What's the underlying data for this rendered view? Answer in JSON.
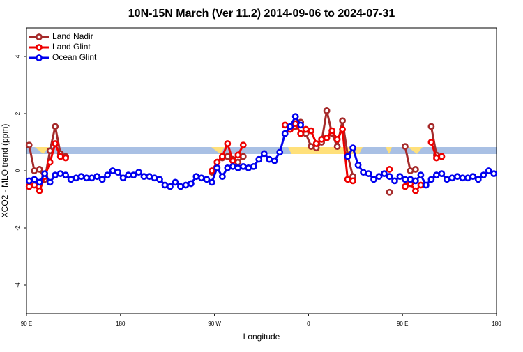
{
  "chart_data": {
    "type": "line",
    "title": "10N-15N March (Ver 11.2)   2014-09-06 to 2024-07-31",
    "x_label": "Longitude",
    "y_label": "XCO2 - MLO trend (ppm)",
    "xlim": [
      90,
      540
    ],
    "xticks": [
      {
        "value": 90,
        "label": "90 E"
      },
      180,
      {
        "value": 270,
        "label": "90 W"
      },
      {
        "value": 360,
        "label": "0"
      },
      {
        "value": 450,
        "label": "90 E"
      },
      {
        "value": 540,
        "label": "180"
      }
    ],
    "ylim": [
      -5,
      5
    ],
    "yticks": [
      -4,
      -2,
      0,
      2,
      4
    ],
    "legend": "top-left",
    "x": [
      92.5,
      97.5,
      102.5,
      107.5,
      112.5,
      117.5,
      122.5,
      127.5,
      132.5,
      137.5,
      142.5,
      147.5,
      152.5,
      157.5,
      162.5,
      167.5,
      172.5,
      177.5,
      182.5,
      187.5,
      192.5,
      197.5,
      202.5,
      207.5,
      212.5,
      217.5,
      222.5,
      227.5,
      232.5,
      237.5,
      242.5,
      247.5,
      252.5,
      257.5,
      262.5,
      267.5,
      272.5,
      277.5,
      282.5,
      287.5,
      292.5,
      297.5,
      302.5,
      307.5,
      312.5,
      317.5,
      322.5,
      327.5,
      332.5,
      337.5,
      342.5,
      347.5,
      352.5,
      357.5,
      362.5,
      367.5,
      372.5,
      377.5,
      382.5,
      387.5,
      392.5,
      397.5,
      402.5,
      407.5,
      412.5,
      417.5,
      422.5,
      427.5,
      432.5,
      437.5,
      442.5,
      447.5,
      452.5,
      457.5,
      462.5,
      467.5,
      472.5,
      477.5,
      482.5,
      487.5,
      492.5,
      497.5,
      502.5,
      507.5,
      512.5,
      517.5,
      522.5,
      527.5,
      532.5,
      537.5
    ],
    "series": [
      {
        "name": "Land Nadir",
        "color": "#a52a2a",
        "values": [
          0.9,
          0.0,
          0.05,
          -0.3,
          0.7,
          1.55,
          0.6,
          0.5,
          null,
          null,
          null,
          null,
          null,
          null,
          null,
          null,
          null,
          null,
          null,
          null,
          null,
          null,
          null,
          null,
          null,
          null,
          null,
          null,
          null,
          null,
          null,
          null,
          null,
          null,
          null,
          -0.05,
          0.3,
          0.45,
          0.5,
          0.4,
          0.3,
          0.5,
          null,
          null,
          null,
          null,
          null,
          null,
          null,
          null,
          null,
          1.55,
          1.7,
          1.3,
          0.85,
          0.8,
          1.0,
          2.1,
          1.3,
          0.85,
          1.75,
          0.55,
          -0.2,
          null,
          null,
          null,
          null,
          null,
          null,
          -0.75,
          null,
          null,
          0.85,
          0.0,
          0.05,
          null,
          null,
          1.55,
          0.55,
          0.5,
          null,
          null,
          null,
          null,
          null,
          null,
          null,
          null,
          null,
          null
        ]
      },
      {
        "name": "Land Glint",
        "color": "#ee0000",
        "values": [
          -0.55,
          -0.5,
          -0.7,
          -0.2,
          0.3,
          0.95,
          0.5,
          0.45,
          null,
          null,
          null,
          null,
          null,
          null,
          null,
          null,
          null,
          null,
          null,
          null,
          null,
          null,
          null,
          null,
          null,
          null,
          null,
          null,
          null,
          null,
          null,
          null,
          null,
          null,
          null,
          0.0,
          0.3,
          0.5,
          0.95,
          0.35,
          0.55,
          0.9,
          null,
          null,
          null,
          null,
          null,
          null,
          null,
          1.6,
          1.45,
          1.65,
          1.3,
          1.45,
          1.4,
          0.95,
          1.1,
          1.15,
          1.4,
          1.1,
          1.45,
          -0.3,
          -0.35,
          null,
          null,
          null,
          null,
          null,
          null,
          0.05,
          null,
          null,
          -0.55,
          -0.45,
          -0.7,
          -0.5,
          null,
          1.0,
          0.45,
          0.5,
          null,
          null,
          null,
          null,
          null,
          null,
          null,
          null,
          null,
          null
        ]
      },
      {
        "name": "Ocean Glint",
        "color": "#0000ee",
        "values": [
          -0.35,
          -0.3,
          -0.4,
          -0.1,
          -0.4,
          -0.15,
          -0.1,
          -0.15,
          -0.3,
          -0.25,
          -0.2,
          -0.25,
          -0.25,
          -0.2,
          -0.3,
          -0.15,
          0.0,
          -0.05,
          -0.25,
          -0.15,
          -0.15,
          -0.05,
          -0.2,
          -0.2,
          -0.25,
          -0.3,
          -0.5,
          -0.55,
          -0.4,
          -0.55,
          -0.5,
          -0.45,
          -0.2,
          -0.25,
          -0.3,
          -0.4,
          0.1,
          -0.2,
          0.1,
          0.15,
          0.1,
          0.15,
          0.1,
          0.15,
          0.4,
          0.6,
          0.4,
          0.35,
          0.65,
          1.3,
          1.55,
          1.9,
          1.6,
          null,
          null,
          null,
          null,
          null,
          null,
          null,
          null,
          0.5,
          0.8,
          0.2,
          -0.05,
          -0.1,
          -0.3,
          -0.2,
          -0.1,
          -0.2,
          -0.35,
          -0.2,
          -0.3,
          -0.3,
          -0.35,
          -0.15,
          -0.5,
          -0.3,
          -0.15,
          -0.1,
          -0.3,
          -0.25,
          -0.2,
          -0.25,
          -0.25,
          -0.2,
          -0.3,
          -0.15,
          0.0,
          -0.1
        ]
      }
    ]
  }
}
